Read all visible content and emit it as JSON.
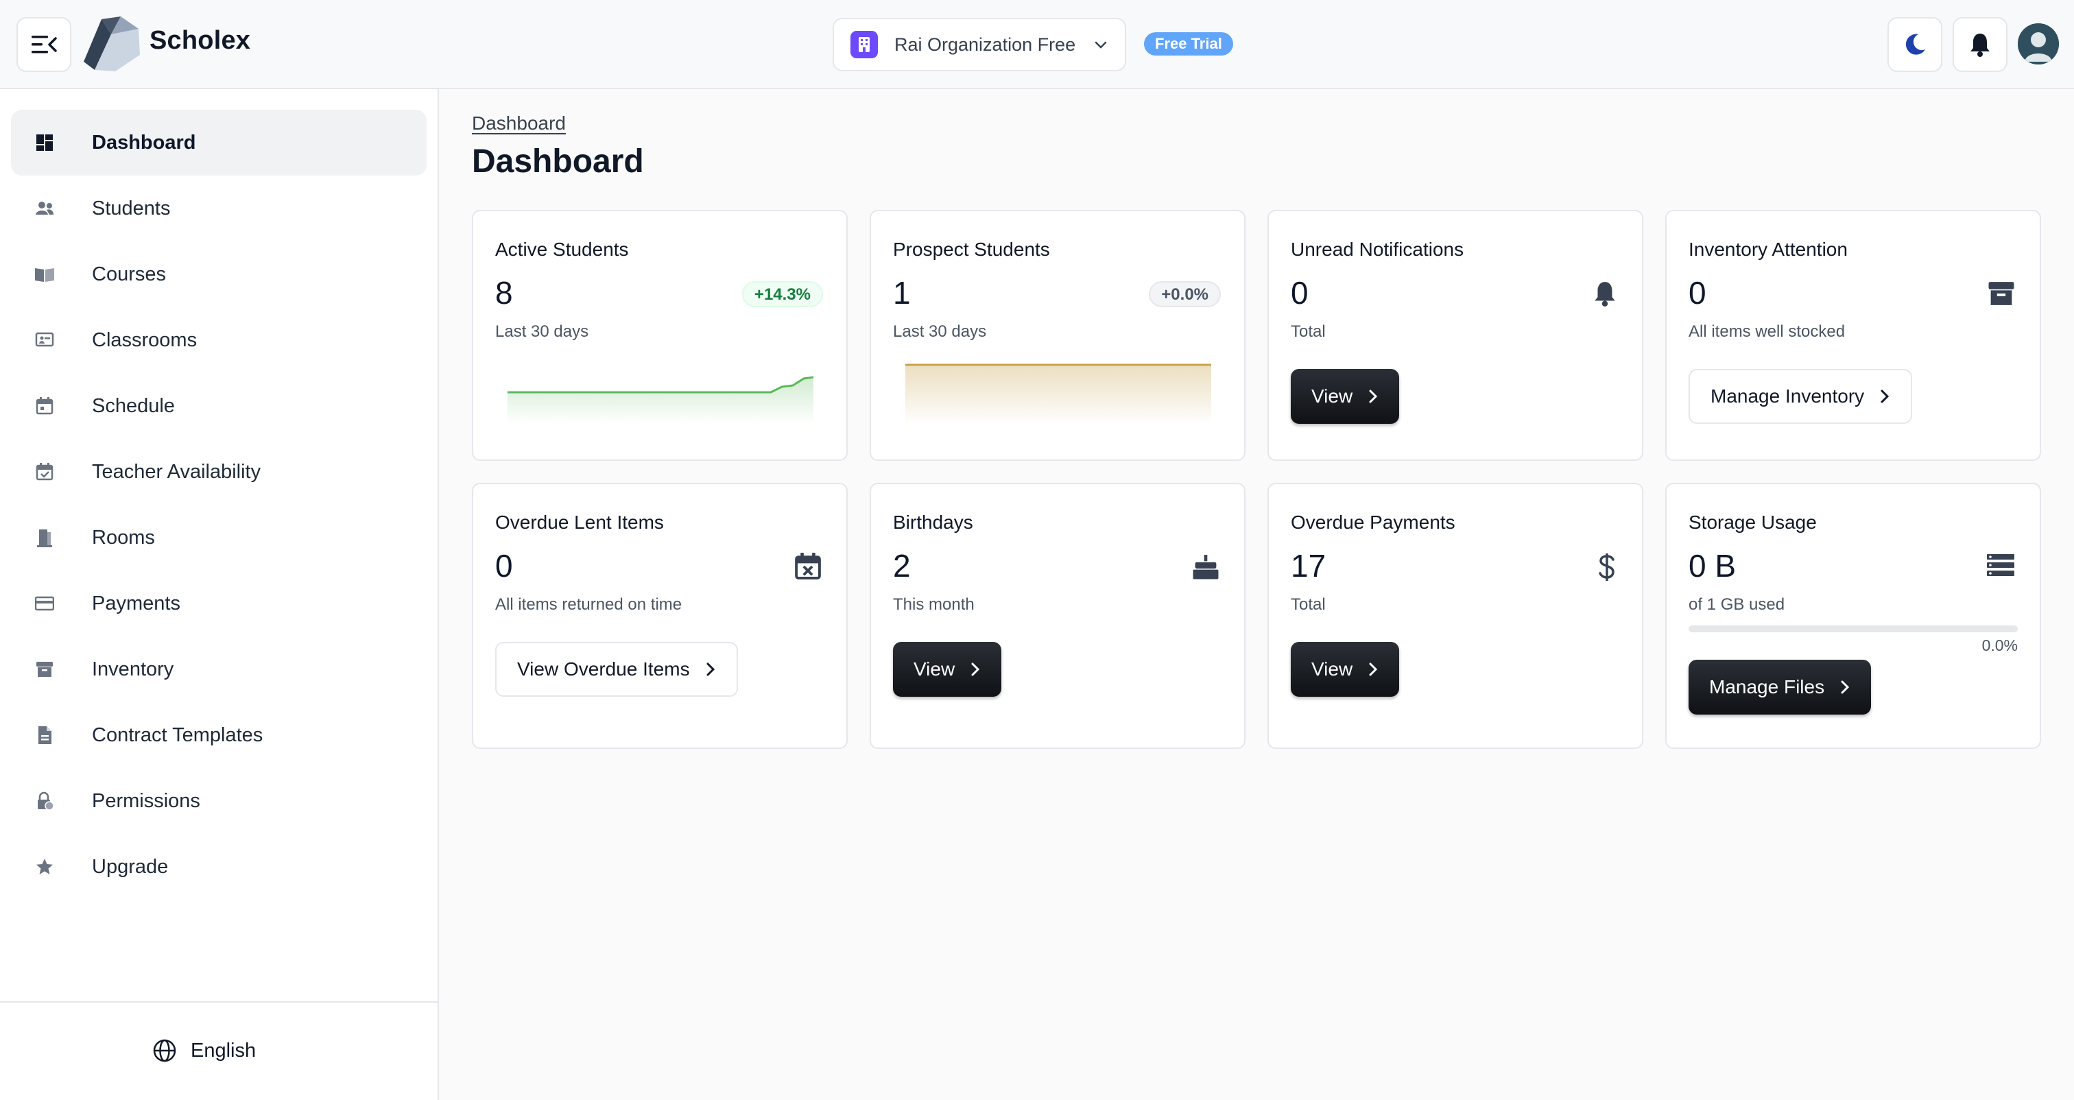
{
  "header": {
    "brand": "Scholex",
    "organization": "Rai Organization Free",
    "badge": "Free Trial"
  },
  "sidebar": {
    "items": [
      {
        "label": "Dashboard",
        "icon": "dashboard-icon",
        "active": true
      },
      {
        "label": "Students",
        "icon": "students-icon"
      },
      {
        "label": "Courses",
        "icon": "book-icon"
      },
      {
        "label": "Classrooms",
        "icon": "classroom-icon"
      },
      {
        "label": "Schedule",
        "icon": "calendar-icon"
      },
      {
        "label": "Teacher Availability",
        "icon": "calendar-check-icon"
      },
      {
        "label": "Rooms",
        "icon": "door-icon"
      },
      {
        "label": "Payments",
        "icon": "credit-card-icon"
      },
      {
        "label": "Inventory",
        "icon": "archive-icon"
      },
      {
        "label": "Contract Templates",
        "icon": "document-icon"
      },
      {
        "label": "Permissions",
        "icon": "lock-icon"
      },
      {
        "label": "Upgrade",
        "icon": "star-icon"
      }
    ],
    "language": "English"
  },
  "main": {
    "breadcrumb": "Dashboard",
    "title": "Dashboard"
  },
  "cards": {
    "active_students": {
      "title": "Active Students",
      "value": "8",
      "sub": "Last 30 days",
      "trend": "+14.3%"
    },
    "prospect_students": {
      "title": "Prospect Students",
      "value": "1",
      "sub": "Last 30 days",
      "trend": "+0.0%"
    },
    "unread_notifications": {
      "title": "Unread Notifications",
      "value": "0",
      "sub": "Total",
      "button": "View"
    },
    "inventory_attention": {
      "title": "Inventory Attention",
      "value": "0",
      "sub": "All items well stocked",
      "button": "Manage Inventory"
    },
    "overdue_lent": {
      "title": "Overdue Lent Items",
      "value": "0",
      "sub": "All items returned on time",
      "button": "View Overdue Items"
    },
    "birthdays": {
      "title": "Birthdays",
      "value": "2",
      "sub": "This month",
      "button": "View"
    },
    "overdue_payments": {
      "title": "Overdue Payments",
      "value": "17",
      "sub": "Total",
      "button": "View"
    },
    "storage": {
      "title": "Storage Usage",
      "value": "0 B",
      "sub": "of 1 GB used",
      "percent_label": "0.0%",
      "percent": 0,
      "button": "Manage Files"
    }
  },
  "colors": {
    "accent_green": "#5cb85c",
    "accent_gold": "#c9a24a",
    "brand_purple": "#6d4aff",
    "badge_blue": "#60a5fa"
  }
}
